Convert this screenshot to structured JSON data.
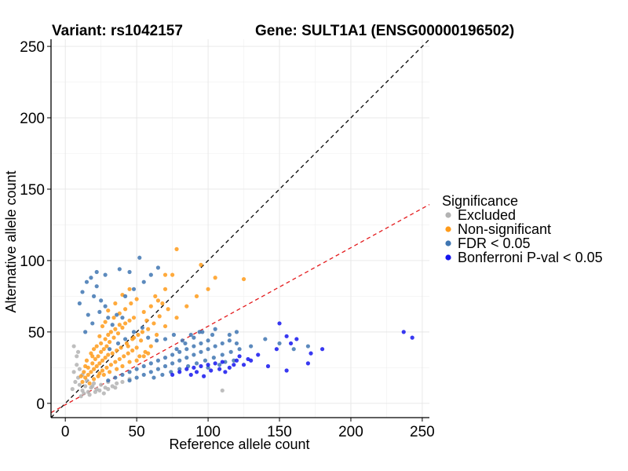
{
  "chart_data": {
    "type": "scatter",
    "title_left": "Variant: rs1042157",
    "title_right": "Gene: SULT1A1 (ENSG00000196502)",
    "xlabel": "Reference allele count",
    "ylabel": "Alternative allele count",
    "xlim": [
      -10,
      255
    ],
    "ylim": [
      -10,
      255
    ],
    "x_ticks": [
      0,
      50,
      100,
      150,
      200,
      250
    ],
    "y_ticks": [
      0,
      50,
      100,
      150,
      200,
      250
    ],
    "grid": true,
    "reference_lines": [
      {
        "kind": "identity",
        "slope": 1,
        "intercept": 0,
        "color": "#000000",
        "style": "dashed"
      },
      {
        "kind": "expected-ratio",
        "slope": 0.55,
        "intercept": -1,
        "color": "#e41a1c",
        "style": "dashed"
      }
    ],
    "legend": {
      "title": "Significance",
      "position": "right",
      "entries": [
        {
          "label": "Excluded",
          "color": "#b3b3b3"
        },
        {
          "label": "Non-significant",
          "color": "#ff9b1a"
        },
        {
          "label": "FDR < 0.05",
          "color": "#3f76b2"
        },
        {
          "label": "Bonferroni P-val < 0.05",
          "color": "#1515ee"
        }
      ]
    },
    "series": [
      {
        "name": "Excluded",
        "color": "#b3b3b3",
        "points": [
          [
            5,
            10
          ],
          [
            7,
            15
          ],
          [
            6,
            22
          ],
          [
            8,
            27
          ],
          [
            9,
            18
          ],
          [
            10,
            13
          ],
          [
            12,
            9
          ],
          [
            14,
            12
          ],
          [
            16,
            8
          ],
          [
            18,
            11
          ],
          [
            20,
            14
          ],
          [
            22,
            10
          ],
          [
            25,
            13
          ],
          [
            28,
            11
          ],
          [
            30,
            15
          ],
          [
            33,
            12
          ],
          [
            36,
            14
          ],
          [
            40,
            15
          ],
          [
            45,
            17
          ],
          [
            11,
            5
          ],
          [
            13,
            7
          ],
          [
            17,
            6
          ],
          [
            21,
            8
          ],
          [
            24,
            9
          ],
          [
            27,
            7
          ],
          [
            8,
            33
          ],
          [
            9,
            36
          ],
          [
            10,
            24
          ],
          [
            6,
            40
          ],
          [
            30,
            10
          ],
          [
            35,
            11
          ],
          [
            19,
            12
          ],
          [
            15,
            16
          ],
          [
            12,
            20
          ],
          [
            110,
            9
          ]
        ]
      },
      {
        "name": "Non-significant",
        "color": "#ff9b1a",
        "points": [
          [
            12,
            15
          ],
          [
            14,
            18
          ],
          [
            16,
            20
          ],
          [
            18,
            22
          ],
          [
            20,
            24
          ],
          [
            22,
            26
          ],
          [
            24,
            28
          ],
          [
            26,
            30
          ],
          [
            28,
            32
          ],
          [
            30,
            34
          ],
          [
            15,
            30
          ],
          [
            18,
            35
          ],
          [
            20,
            38
          ],
          [
            22,
            40
          ],
          [
            25,
            42
          ],
          [
            28,
            45
          ],
          [
            30,
            48
          ],
          [
            32,
            50
          ],
          [
            35,
            52
          ],
          [
            38,
            55
          ],
          [
            16,
            25
          ],
          [
            19,
            28
          ],
          [
            21,
            31
          ],
          [
            23,
            33
          ],
          [
            25,
            36
          ],
          [
            27,
            38
          ],
          [
            29,
            40
          ],
          [
            31,
            43
          ],
          [
            34,
            46
          ],
          [
            37,
            49
          ],
          [
            40,
            53
          ],
          [
            42,
            56
          ],
          [
            45,
            58
          ],
          [
            48,
            60
          ],
          [
            24,
            21
          ],
          [
            26,
            23
          ],
          [
            29,
            25
          ],
          [
            32,
            27
          ],
          [
            35,
            29
          ],
          [
            38,
            31
          ],
          [
            41,
            33
          ],
          [
            44,
            35
          ],
          [
            47,
            37
          ],
          [
            50,
            39
          ],
          [
            20,
            17
          ],
          [
            23,
            19
          ],
          [
            27,
            20
          ],
          [
            31,
            22
          ],
          [
            36,
            24
          ],
          [
            40,
            26
          ],
          [
            45,
            29
          ],
          [
            52,
            33
          ],
          [
            56,
            36
          ],
          [
            60,
            40
          ],
          [
            34,
            60
          ],
          [
            38,
            63
          ],
          [
            42,
            66
          ],
          [
            46,
            70
          ],
          [
            50,
            73
          ],
          [
            30,
            65
          ],
          [
            35,
            70
          ],
          [
            40,
            76
          ],
          [
            45,
            80
          ],
          [
            55,
            64
          ],
          [
            60,
            68
          ],
          [
            65,
            72
          ],
          [
            70,
            80
          ],
          [
            75,
            90
          ],
          [
            68,
            70
          ],
          [
            72,
            66
          ],
          [
            62,
            56
          ],
          [
            58,
            52
          ],
          [
            64,
            48
          ],
          [
            70,
            54
          ],
          [
            78,
            60
          ],
          [
            85,
            68
          ],
          [
            92,
            75
          ],
          [
            100,
            80
          ],
          [
            105,
            88
          ],
          [
            125,
            87
          ],
          [
            78,
            108
          ],
          [
            95,
            97
          ],
          [
            70,
            90
          ],
          [
            63,
            75
          ],
          [
            51,
            48
          ],
          [
            53,
            44
          ],
          [
            47,
            45
          ],
          [
            43,
            42
          ],
          [
            39,
            39
          ],
          [
            36,
            37
          ],
          [
            33,
            35
          ],
          [
            17,
            14
          ],
          [
            13,
            22
          ],
          [
            11,
            19
          ],
          [
            14,
            26
          ],
          [
            19,
            33
          ],
          [
            24,
            47
          ],
          [
            26,
            54
          ],
          [
            28,
            57
          ],
          [
            44,
            40
          ],
          [
            48,
            46
          ],
          [
            54,
            50
          ],
          [
            57,
            58
          ],
          [
            66,
            61
          ],
          [
            50,
            30
          ],
          [
            55,
            33
          ],
          [
            58,
            35
          ]
        ]
      },
      {
        "name": "FDR < 0.05",
        "color": "#3f76b2",
        "points": [
          [
            30,
            16
          ],
          [
            35,
            18
          ],
          [
            40,
            20
          ],
          [
            45,
            22
          ],
          [
            50,
            24
          ],
          [
            55,
            26
          ],
          [
            60,
            28
          ],
          [
            65,
            30
          ],
          [
            70,
            32
          ],
          [
            75,
            34
          ],
          [
            80,
            36
          ],
          [
            85,
            38
          ],
          [
            90,
            40
          ],
          [
            95,
            42
          ],
          [
            100,
            44
          ],
          [
            45,
            16
          ],
          [
            50,
            18
          ],
          [
            55,
            20
          ],
          [
            60,
            22
          ],
          [
            65,
            24
          ],
          [
            70,
            26
          ],
          [
            75,
            28
          ],
          [
            80,
            30
          ],
          [
            85,
            32
          ],
          [
            90,
            34
          ],
          [
            95,
            36
          ],
          [
            100,
            38
          ],
          [
            105,
            40
          ],
          [
            110,
            42
          ],
          [
            115,
            44
          ],
          [
            62,
            18
          ],
          [
            68,
            20
          ],
          [
            74,
            22
          ],
          [
            80,
            24
          ],
          [
            86,
            26
          ],
          [
            92,
            28
          ],
          [
            98,
            30
          ],
          [
            104,
            32
          ],
          [
            110,
            34
          ],
          [
            116,
            36
          ],
          [
            122,
            38
          ],
          [
            78,
            38
          ],
          [
            84,
            42
          ],
          [
            90,
            46
          ],
          [
            96,
            50
          ],
          [
            105,
            52
          ],
          [
            115,
            48
          ],
          [
            120,
            42
          ],
          [
            130,
            40
          ],
          [
            140,
            45
          ],
          [
            150,
            42
          ],
          [
            160,
            38
          ],
          [
            170,
            40
          ],
          [
            100,
            25
          ],
          [
            108,
            27
          ],
          [
            112,
            29
          ],
          [
            118,
            30
          ],
          [
            10,
            70
          ],
          [
            12,
            78
          ],
          [
            15,
            85
          ],
          [
            18,
            88
          ],
          [
            20,
            75
          ],
          [
            22,
            82
          ],
          [
            25,
            72
          ],
          [
            28,
            68
          ],
          [
            30,
            60
          ],
          [
            33,
            55
          ],
          [
            36,
            62
          ],
          [
            40,
            60
          ],
          [
            22,
            92
          ],
          [
            28,
            90
          ],
          [
            38,
            94
          ],
          [
            45,
            92
          ],
          [
            52,
            102
          ],
          [
            60,
            90
          ],
          [
            65,
            95
          ],
          [
            55,
            85
          ],
          [
            48,
            80
          ],
          [
            42,
            75
          ],
          [
            16,
            62
          ],
          [
            19,
            56
          ],
          [
            14,
            50
          ],
          [
            24,
            64
          ],
          [
            31,
            38
          ],
          [
            37,
            42
          ],
          [
            42,
            45
          ],
          [
            48,
            50
          ],
          [
            54,
            53
          ],
          [
            58,
            46
          ],
          [
            64,
            44
          ],
          [
            70,
            45
          ],
          [
            76,
            48
          ],
          [
            82,
            44
          ],
          [
            88,
            48
          ],
          [
            94,
            50
          ],
          [
            120,
            50
          ],
          [
            103,
            48
          ]
        ]
      },
      {
        "name": "Bonferroni P-val < 0.05",
        "color": "#1515ee",
        "points": [
          [
            75,
            20
          ],
          [
            80,
            22
          ],
          [
            85,
            24
          ],
          [
            90,
            25
          ],
          [
            95,
            26
          ],
          [
            100,
            27
          ],
          [
            105,
            28
          ],
          [
            110,
            29
          ],
          [
            115,
            25
          ],
          [
            120,
            30
          ],
          [
            125,
            27
          ],
          [
            130,
            30
          ],
          [
            88,
            20
          ],
          [
            92,
            22
          ],
          [
            97,
            19
          ],
          [
            102,
            23
          ],
          [
            108,
            24
          ],
          [
            112,
            22
          ],
          [
            118,
            27
          ],
          [
            122,
            33
          ],
          [
            128,
            31
          ],
          [
            135,
            34
          ],
          [
            142,
            26
          ],
          [
            148,
            38
          ],
          [
            150,
            56
          ],
          [
            155,
            47
          ],
          [
            158,
            42
          ],
          [
            162,
            45
          ],
          [
            172,
            35
          ],
          [
            180,
            38
          ],
          [
            237,
            50
          ],
          [
            243,
            46
          ],
          [
            155,
            23
          ],
          [
            170,
            28
          ]
        ]
      }
    ]
  }
}
